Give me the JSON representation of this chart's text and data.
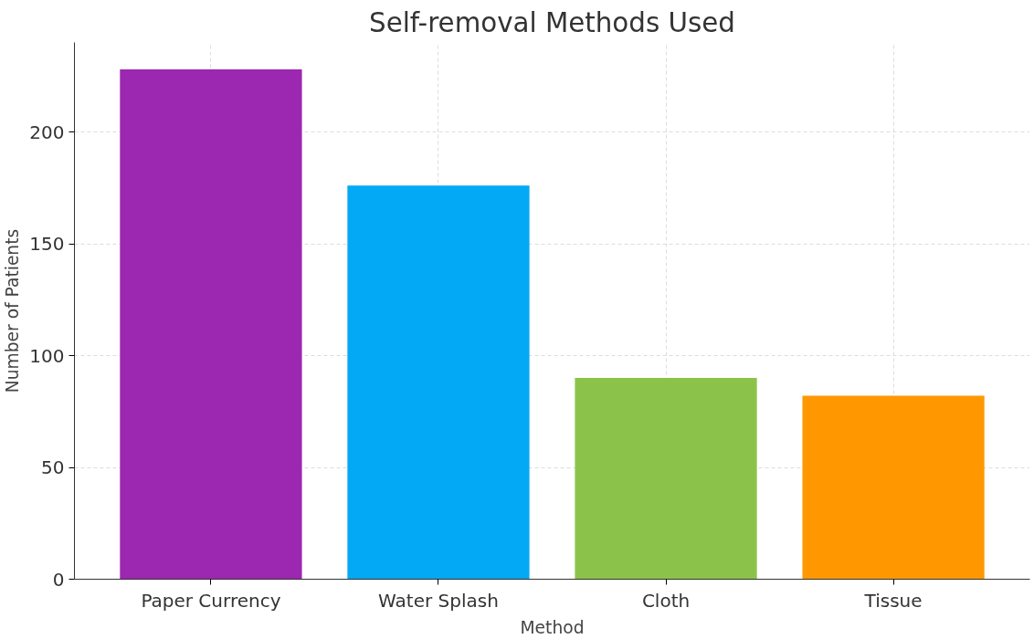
{
  "chart_data": {
    "type": "bar",
    "title": "Self-removal Methods Used",
    "xlabel": "Method",
    "ylabel": "Number of Patients",
    "categories": [
      "Paper Currency",
      "Water Splash",
      "Cloth",
      "Tissue"
    ],
    "values": [
      228,
      176,
      90,
      82
    ],
    "colors": [
      "#9c27b0",
      "#03a9f4",
      "#8bc34a",
      "#ff9800"
    ],
    "ylim": [
      0,
      240
    ],
    "yticks": [
      0,
      50,
      100,
      150,
      200
    ],
    "grid": true
  }
}
